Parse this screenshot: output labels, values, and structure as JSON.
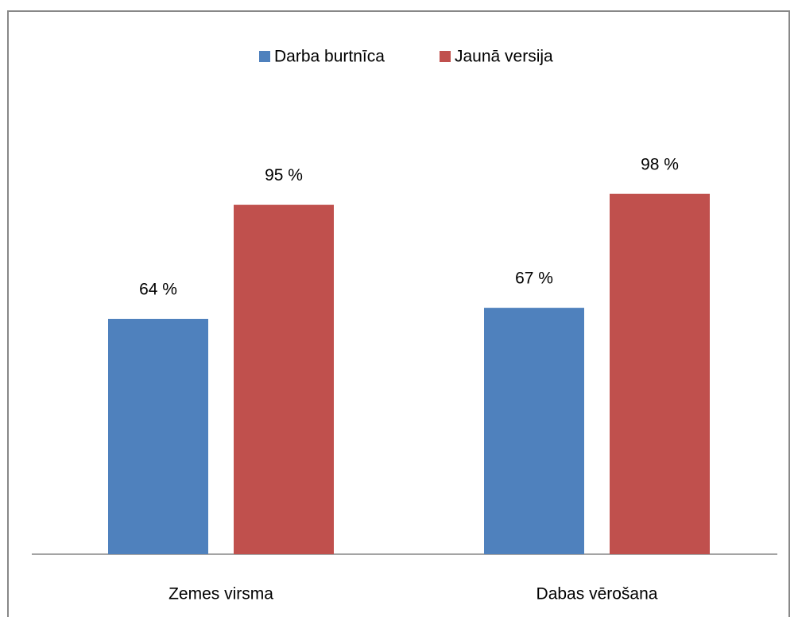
{
  "chart_data": {
    "type": "bar",
    "categories": [
      "Zemes virsma",
      "Dabas vērošana"
    ],
    "series": [
      {
        "name": "Darba burtnīca",
        "color": "#4f81bd",
        "values": [
          64,
          67
        ],
        "value_labels": [
          "64 %",
          "67 %"
        ]
      },
      {
        "name": "Jaunā versija",
        "color": "#c0504d",
        "values": [
          95,
          98
        ],
        "value_labels": [
          "95 %",
          "98 %"
        ]
      }
    ],
    "legend": "top"
  }
}
